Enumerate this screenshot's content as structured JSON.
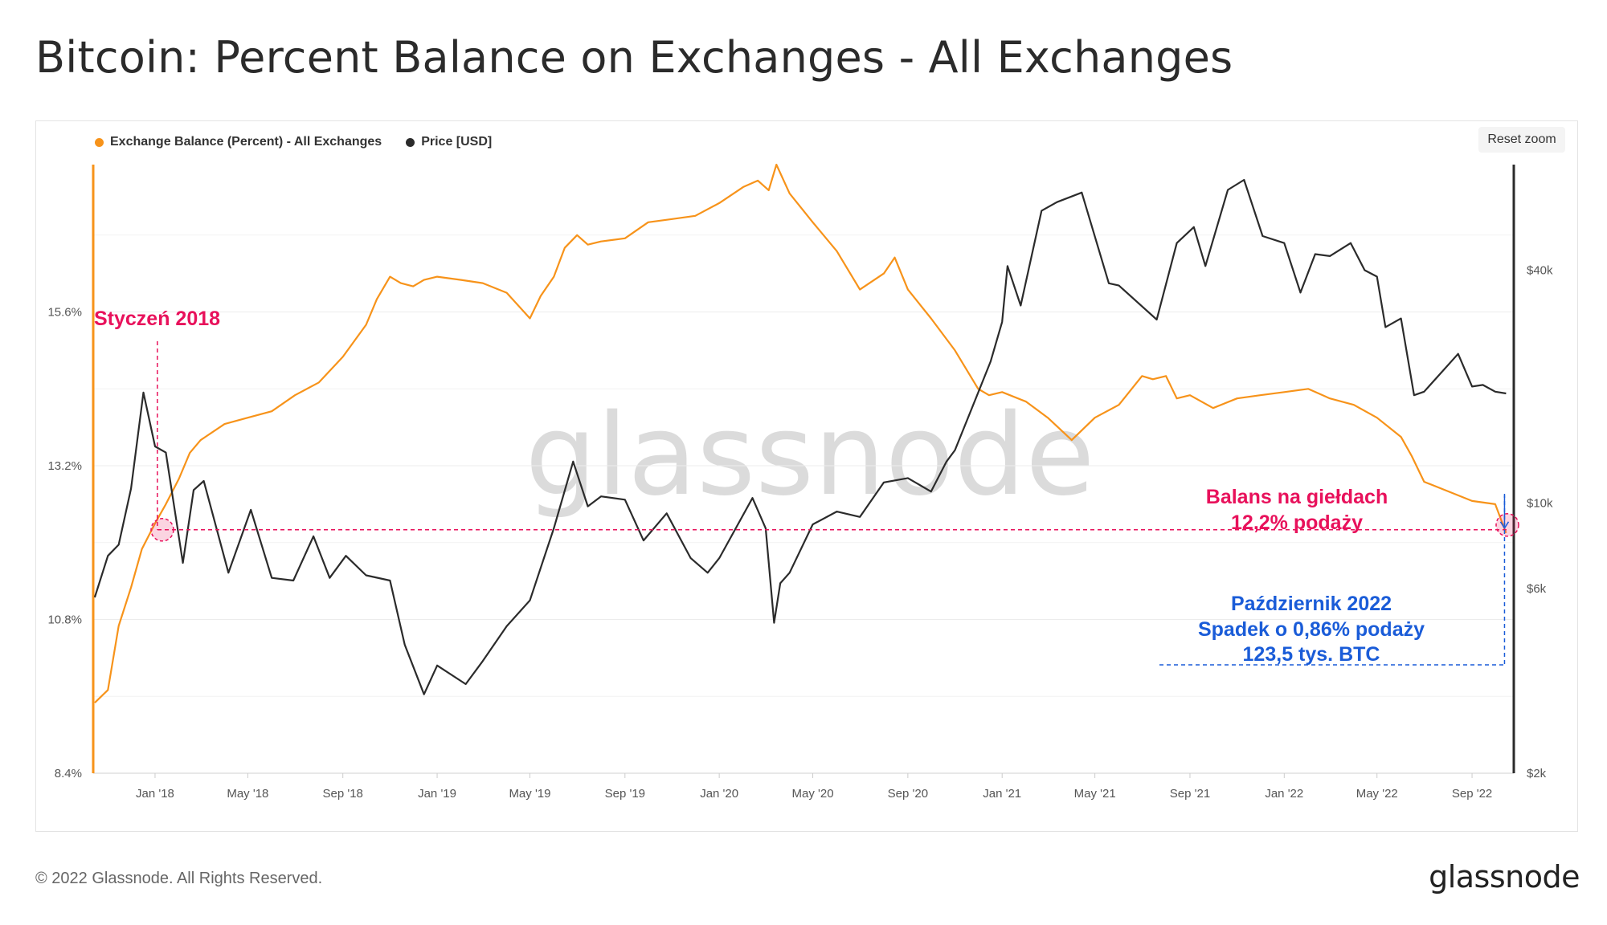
{
  "title": "Bitcoin: Percent Balance on Exchanges - All Exchanges",
  "reset_zoom_label": "Reset zoom",
  "footer": {
    "copyright": "© 2022 Glassnode. All Rights Reserved.",
    "logo": "glassnode",
    "watermark": "glassnode"
  },
  "colors": {
    "balance": "#f7931a",
    "price": "#2b2b2b",
    "annotation_pink": "#e8115b",
    "annotation_blue": "#1a5cd8"
  },
  "annotations": {
    "jan2018": "Styczeń 2018",
    "balance_line1": "Balans na giełdach",
    "balance_line2": "12,2% podaży",
    "oct_line1": "Październik 2022",
    "oct_line2": "Spadek o 0,86% podaży",
    "oct_line3": "123,5 tys. BTC"
  },
  "chart_data": {
    "type": "line",
    "legend_placement": "top-left",
    "grid": true,
    "x_tick_labels": [
      "Jan '18",
      "May '18",
      "Sep '18",
      "Jan '19",
      "May '19",
      "Sep '19",
      "Jan '20",
      "May '20",
      "Sep '20",
      "Jan '21",
      "May '21",
      "Sep '21",
      "Jan '22",
      "May '22",
      "Sep '22"
    ],
    "left_axis": {
      "ticks": [
        "8.4%",
        "10.8%",
        "13.2%",
        "15.6%"
      ],
      "tick_values": [
        8.4,
        10.8,
        13.2,
        15.6
      ],
      "range": [
        8.4,
        17.9
      ]
    },
    "right_axis": {
      "scale": "log",
      "ticks": [
        "$2k",
        "$6k",
        "$10k",
        "$40k"
      ],
      "tick_values": [
        2000,
        6000,
        10000,
        40000
      ],
      "range": [
        2000,
        75000
      ]
    },
    "series": [
      {
        "name": "Exchange Balance (Percent) - All Exchanges",
        "axis": "left",
        "x": [
          "2017-10-15",
          "2017-11-01",
          "2017-11-15",
          "2017-12-01",
          "2017-12-15",
          "2018-01-01",
          "2018-01-15",
          "2018-02-01",
          "2018-02-15",
          "2018-03-01",
          "2018-04-01",
          "2018-05-01",
          "2018-06-01",
          "2018-07-01",
          "2018-08-01",
          "2018-09-01",
          "2018-10-01",
          "2018-10-15",
          "2018-11-01",
          "2018-11-15",
          "2018-12-01",
          "2018-12-15",
          "2019-01-01",
          "2019-02-01",
          "2019-03-01",
          "2019-04-01",
          "2019-05-01",
          "2019-05-15",
          "2019-06-01",
          "2019-06-15",
          "2019-07-01",
          "2019-07-15",
          "2019-08-01",
          "2019-09-01",
          "2019-10-01",
          "2019-11-01",
          "2019-12-01",
          "2020-01-01",
          "2020-02-01",
          "2020-02-20",
          "2020-03-05",
          "2020-03-15",
          "2020-04-01",
          "2020-05-01",
          "2020-06-01",
          "2020-07-01",
          "2020-08-01",
          "2020-08-15",
          "2020-09-01",
          "2020-10-01",
          "2020-11-01",
          "2020-12-01",
          "2020-12-15",
          "2021-01-01",
          "2021-02-01",
          "2021-03-01",
          "2021-04-01",
          "2021-05-01",
          "2021-06-01",
          "2021-07-01",
          "2021-07-15",
          "2021-08-01",
          "2021-08-15",
          "2021-09-01",
          "2021-10-01",
          "2021-11-01",
          "2021-12-01",
          "2022-01-01",
          "2022-02-01",
          "2022-03-01",
          "2022-04-01",
          "2022-05-01",
          "2022-06-01",
          "2022-06-15",
          "2022-07-01",
          "2022-08-01",
          "2022-09-01",
          "2022-10-01",
          "2022-10-15"
        ],
        "values": [
          9.5,
          9.7,
          10.7,
          11.3,
          11.9,
          12.3,
          12.6,
          13.0,
          13.4,
          13.6,
          13.85,
          13.95,
          14.05,
          14.3,
          14.5,
          14.9,
          15.4,
          15.8,
          16.15,
          16.05,
          16.0,
          16.1,
          16.15,
          16.1,
          16.05,
          15.9,
          15.5,
          15.85,
          16.15,
          16.6,
          16.8,
          16.65,
          16.7,
          16.75,
          17.0,
          17.05,
          17.1,
          17.3,
          17.55,
          17.65,
          17.5,
          17.9,
          17.45,
          17.0,
          16.55,
          15.95,
          16.2,
          16.45,
          15.95,
          15.5,
          15.0,
          14.4,
          14.3,
          14.35,
          14.2,
          13.95,
          13.6,
          13.95,
          14.15,
          14.6,
          14.55,
          14.6,
          14.25,
          14.3,
          14.1,
          14.25,
          14.3,
          14.35,
          14.4,
          14.25,
          14.15,
          13.95,
          13.65,
          13.35,
          12.95,
          12.8,
          12.65,
          12.6,
          12.15
        ]
      },
      {
        "name": "Price [USD]",
        "axis": "right",
        "x": [
          "2017-10-15",
          "2017-11-01",
          "2017-11-15",
          "2017-12-01",
          "2017-12-17",
          "2018-01-01",
          "2018-01-15",
          "2018-02-06",
          "2018-02-20",
          "2018-03-05",
          "2018-04-06",
          "2018-05-05",
          "2018-06-01",
          "2018-06-29",
          "2018-07-25",
          "2018-08-15",
          "2018-09-05",
          "2018-10-01",
          "2018-11-01",
          "2018-11-20",
          "2018-12-15",
          "2019-01-01",
          "2019-02-07",
          "2019-03-01",
          "2019-04-01",
          "2019-05-01",
          "2019-06-01",
          "2019-06-26",
          "2019-07-15",
          "2019-08-01",
          "2019-09-01",
          "2019-09-25",
          "2019-10-25",
          "2019-11-25",
          "2019-12-17",
          "2020-01-01",
          "2020-02-13",
          "2020-03-01",
          "2020-03-12",
          "2020-03-20",
          "2020-04-01",
          "2020-05-01",
          "2020-06-01",
          "2020-07-01",
          "2020-08-01",
          "2020-09-01",
          "2020-10-01",
          "2020-10-21",
          "2020-11-01",
          "2020-12-01",
          "2020-12-17",
          "2021-01-01",
          "2021-01-08",
          "2021-01-25",
          "2021-02-21",
          "2021-03-13",
          "2021-04-14",
          "2021-05-19",
          "2021-06-01",
          "2021-07-20",
          "2021-08-15",
          "2021-09-06",
          "2021-09-21",
          "2021-10-20",
          "2021-11-10",
          "2021-12-04",
          "2022-01-01",
          "2022-01-22",
          "2022-02-10",
          "2022-03-01",
          "2022-03-28",
          "2022-04-15",
          "2022-05-01",
          "2022-05-12",
          "2022-06-01",
          "2022-06-18",
          "2022-07-01",
          "2022-08-14",
          "2022-09-01",
          "2022-09-15",
          "2022-10-01",
          "2022-10-15"
        ],
        "values": [
          5700,
          7300,
          7800,
          10900,
          19300,
          14000,
          13500,
          7000,
          10800,
          11400,
          6600,
          9600,
          6400,
          6300,
          8200,
          6400,
          7300,
          6500,
          6300,
          4300,
          3200,
          3800,
          3400,
          3900,
          4800,
          5600,
          8600,
          12800,
          9800,
          10400,
          10200,
          8000,
          9400,
          7200,
          6600,
          7200,
          10300,
          8600,
          4900,
          6200,
          6600,
          8800,
          9500,
          9200,
          11300,
          11600,
          10700,
          12800,
          13700,
          19300,
          23200,
          29400,
          41000,
          32400,
          57000,
          60000,
          63500,
          37000,
          36500,
          29800,
          47000,
          51700,
          41000,
          64500,
          68500,
          49000,
          47000,
          35000,
          44000,
          43500,
          47000,
          40000,
          38500,
          28500,
          30000,
          19000,
          19400,
          24300,
          20000,
          20200,
          19400,
          19200
        ]
      }
    ]
  }
}
